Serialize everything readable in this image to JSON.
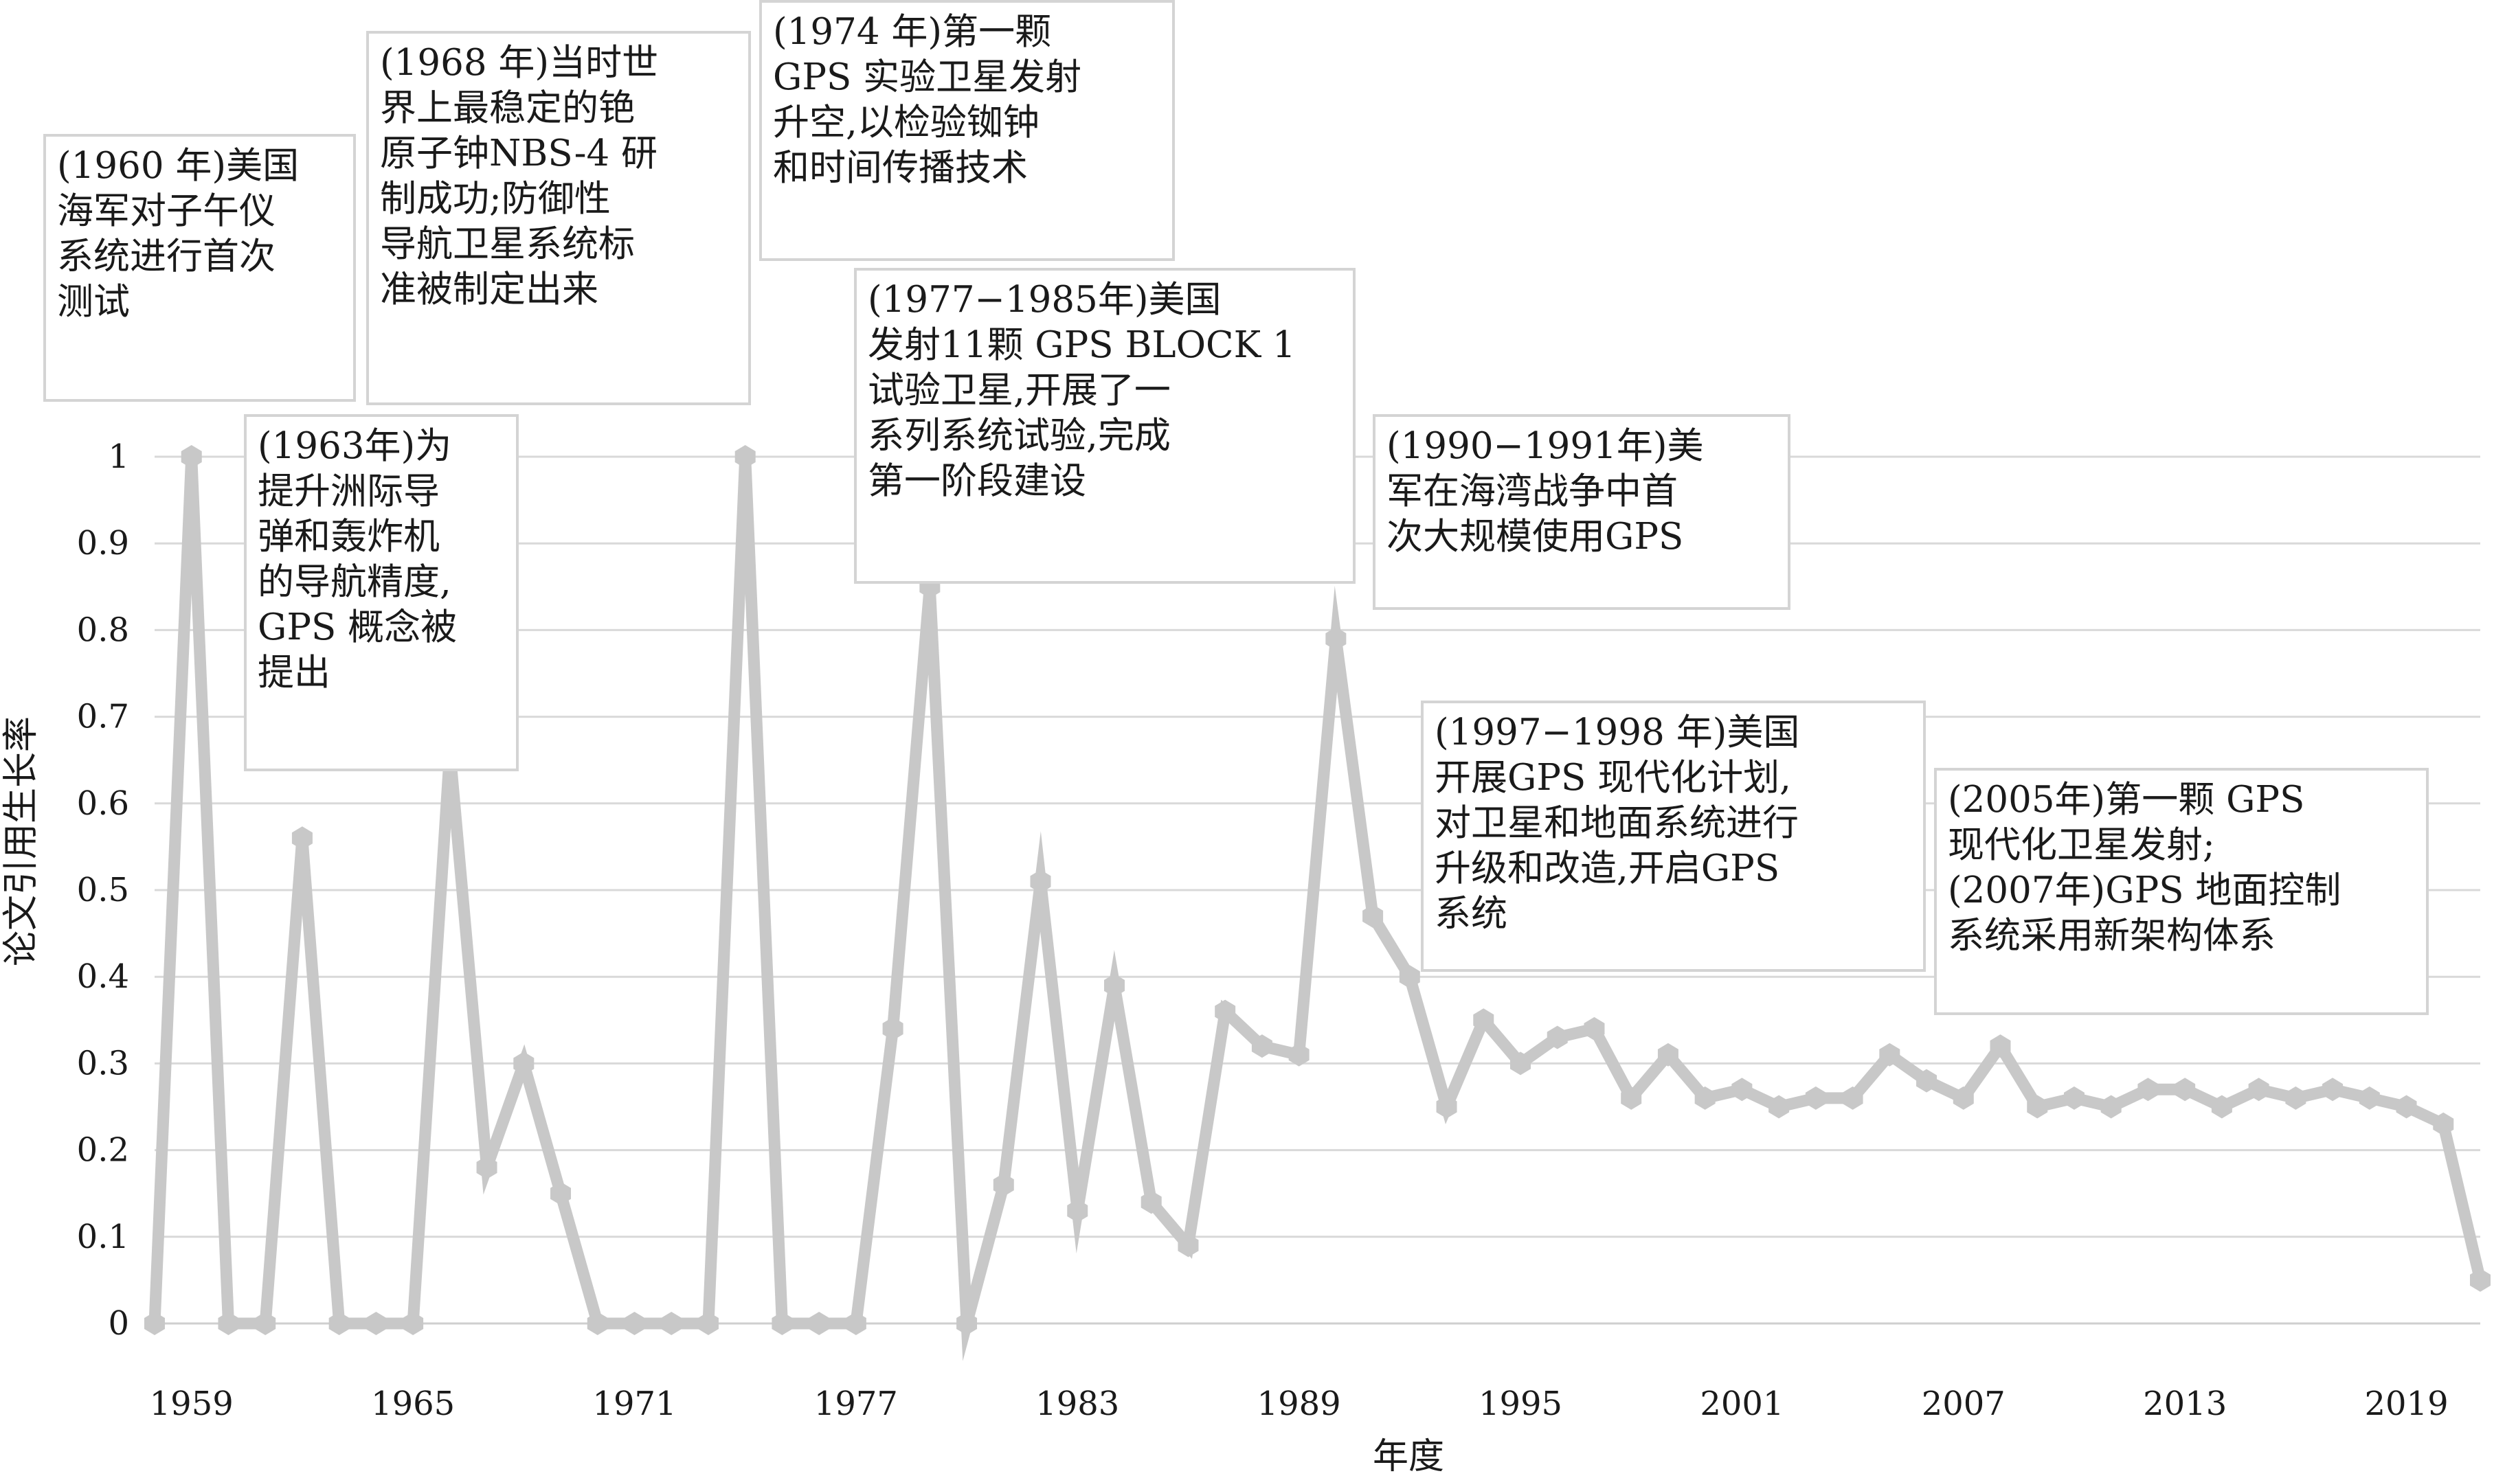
{
  "chart_data": {
    "type": "line",
    "xlabel": "年度",
    "ylabel": "论文引用生长率",
    "ylim": [
      0,
      1
    ],
    "yticks": [
      "0",
      "0.1",
      "0.2",
      "0.3",
      "0.4",
      "0.5",
      "0.6",
      "0.7",
      "0.8",
      "0.9",
      "1"
    ],
    "xticks": [
      "1959",
      "1965",
      "1971",
      "1977",
      "1983",
      "1989",
      "1995",
      "2001",
      "2007",
      "2013",
      "2019"
    ],
    "grid": true,
    "line_color": "#c8c8c8",
    "series": [
      {
        "x": [
          1958,
          1959,
          1960,
          1961,
          1962,
          1963,
          1964,
          1965,
          1966,
          1967,
          1968,
          1969,
          1970,
          1971,
          1972,
          1973,
          1974,
          1975,
          1976,
          1977,
          1978,
          1979,
          1980,
          1981,
          1982,
          1983,
          1984,
          1985,
          1986,
          1987,
          1988,
          1989,
          1990,
          1991,
          1992,
          1993,
          1994,
          1995,
          1996,
          1997,
          1998,
          1999,
          2000,
          2001,
          2002,
          2003,
          2004,
          2005,
          2006,
          2007,
          2008,
          2009,
          2010,
          2011,
          2012,
          2013,
          2014,
          2015,
          2016,
          2017,
          2018,
          2019,
          2020,
          2021
        ],
        "values": [
          0,
          1,
          0,
          0,
          0.56,
          0,
          0,
          0,
          0.66,
          0.18,
          0.3,
          0.15,
          0,
          0,
          0,
          0,
          1,
          0,
          0,
          0,
          0.34,
          0.85,
          0,
          0.16,
          0.51,
          0.13,
          0.39,
          0.14,
          0.09,
          0.36,
          0.32,
          0.31,
          0.79,
          0.47,
          0.4,
          0.25,
          0.35,
          0.3,
          0.33,
          0.34,
          0.26,
          0.31,
          0.26,
          0.27,
          0.25,
          0.26,
          0.26,
          0.31,
          0.28,
          0.26,
          0.32,
          0.25,
          0.26,
          0.25,
          0.27,
          0.27,
          0.25,
          0.27,
          0.26,
          0.27,
          0.26,
          0.25,
          0.23,
          0.05
        ]
      }
    ],
    "annotations": [
      "(1960年)美国海军对子午仪系统进行首次测试",
      "(1963年)为提升洲际导弹和轰炸机的导航精度,GPS概念被提出",
      "(1968年)当时世界上最稳定的铯原子钟NBS-4研制成功;防御性导航卫星系统标准被制定出来",
      "(1974年)第一颗GPS实验卫星发射升空,以检验铷钟和时间传播技术",
      "(1977-1985年)美国发射11颗GPS BLOCK 1试验卫星,开展了一系列系统试验,完成第一阶段建设",
      "(1990-1991年)美军在海湾战争中首次大规模使用GPS",
      "(1997-1998年)美国开展GPS现代化计划,对卫星和地面系统进行升级和改造,开启GPS系统",
      "(2005年)第一颗GPS现代化卫星发射;(2007年)GPS地面控制系统采用新架构体系"
    ]
  },
  "annotation_boxes": [
    {
      "text": "(1960 年)美国\n海军对子午仪\n系统进行首次\n测试"
    },
    {
      "text": "(1963年)为\n提升洲际导\n弹和轰炸机\n的导航精度,\nGPS 概念被\n提出"
    },
    {
      "text": "(1968 年)当时世\n界上最稳定的铯\n原子钟NBS-4 研\n制成功;防御性\n导航卫星系统标\n准被制定出来"
    },
    {
      "text": "(1974 年)第一颗\nGPS 实验卫星发射\n升空,以检验铷钟\n和时间传播技术"
    },
    {
      "text": "(1977−1985年)美国\n发射11颗 GPS BLOCK 1\n试验卫星,开展了一\n系列系统试验,完成\n第一阶段建设"
    },
    {
      "text": "(1990−1991年)美\n军在海湾战争中首\n次大规模使用GPS"
    },
    {
      "text": "(1997−1998 年)美国\n开展GPS 现代化计划,\n对卫星和地面系统进行\n升级和改造,开启GPS\n系统"
    },
    {
      "text": "(2005年)第一颗 GPS\n现代化卫星发射;\n(2007年)GPS 地面控制\n系统采用新架构体系"
    }
  ]
}
